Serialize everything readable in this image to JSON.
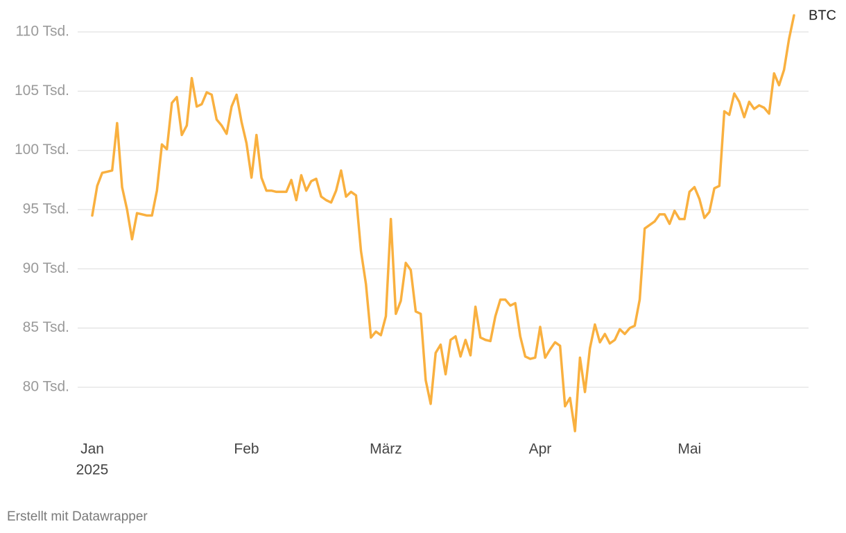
{
  "chart_data": {
    "type": "line",
    "categories": [
      "Jan",
      null,
      null,
      null,
      null,
      null,
      null,
      null,
      null,
      null,
      null,
      null,
      null,
      null,
      null,
      null,
      null,
      null,
      null,
      null,
      null,
      null,
      null,
      null,
      null,
      null,
      null,
      null,
      null,
      null,
      null,
      "Feb",
      null,
      null,
      null,
      null,
      null,
      null,
      null,
      null,
      null,
      null,
      null,
      null,
      null,
      null,
      null,
      null,
      null,
      null,
      null,
      null,
      null,
      null,
      null,
      null,
      null,
      null,
      null,
      "März",
      null,
      null,
      null,
      null,
      null,
      null,
      null,
      null,
      null,
      null,
      null,
      null,
      null,
      null,
      null,
      null,
      null,
      null,
      null,
      null,
      null,
      null,
      null,
      null,
      null,
      null,
      null,
      null,
      null,
      null,
      "Apr",
      null,
      null,
      null,
      null,
      null,
      null,
      null,
      null,
      null,
      null,
      null,
      null,
      null,
      null,
      null,
      null,
      null,
      null,
      null,
      null,
      null,
      null,
      null,
      null,
      null,
      null,
      null,
      null,
      null,
      "Mai",
      null,
      null,
      null,
      null,
      null,
      null,
      null,
      null,
      null,
      null,
      null,
      null,
      null,
      null,
      null,
      null,
      null,
      null,
      null,
      null,
      null
    ],
    "year_label": "2025",
    "series": [
      {
        "name": "BTC",
        "color": "#f9b03f",
        "values": [
          94.5,
          97.0,
          98.1,
          98.2,
          98.3,
          102.3,
          96.9,
          95.0,
          92.5,
          94.7,
          94.6,
          94.5,
          94.5,
          96.6,
          100.5,
          100.1,
          104.0,
          104.5,
          101.3,
          102.1,
          106.1,
          103.7,
          103.9,
          104.9,
          104.7,
          102.6,
          102.1,
          101.4,
          103.7,
          104.7,
          102.4,
          100.6,
          97.7,
          101.3,
          97.7,
          96.6,
          96.6,
          96.5,
          96.5,
          96.5,
          97.5,
          95.8,
          97.9,
          96.6,
          97.4,
          97.6,
          96.1,
          95.8,
          95.6,
          96.6,
          98.3,
          96.1,
          96.5,
          96.2,
          91.5,
          88.7,
          84.2,
          84.7,
          84.4,
          86.0,
          94.2,
          86.2,
          87.3,
          90.5,
          89.9,
          86.4,
          86.2,
          80.6,
          78.6,
          82.9,
          83.6,
          81.1,
          84.0,
          84.3,
          82.6,
          84.0,
          82.7,
          86.8,
          84.2,
          84.0,
          83.9,
          86.0,
          87.4,
          87.4,
          86.9,
          87.1,
          84.3,
          82.6,
          82.4,
          82.5,
          85.1,
          82.5,
          83.2,
          83.8,
          83.5,
          78.4,
          79.1,
          76.3,
          82.5,
          79.6,
          83.3,
          85.3,
          83.8,
          84.5,
          83.7,
          84.0,
          84.9,
          84.5,
          85.0,
          85.2,
          87.4,
          93.4,
          93.7,
          94.0,
          94.6,
          94.6,
          93.8,
          94.9,
          94.2,
          94.2,
          96.5,
          96.9,
          95.9,
          94.3,
          94.8,
          96.8,
          97.0,
          103.3,
          103.0,
          104.8,
          104.1,
          102.8,
          104.1,
          103.5,
          103.8,
          103.6,
          103.1,
          106.5,
          105.5,
          106.8,
          109.4,
          111.4
        ]
      }
    ],
    "ylim": [
      76,
      111.6
    ],
    "yticks": [
      {
        "value": 80,
        "label": "80 Tsd."
      },
      {
        "value": 85,
        "label": "85 Tsd."
      },
      {
        "value": 90,
        "label": "90 Tsd."
      },
      {
        "value": 95,
        "label": "95 Tsd."
      },
      {
        "value": 100,
        "label": "100 Tsd."
      },
      {
        "value": 105,
        "label": "105 Tsd."
      },
      {
        "value": 110,
        "label": "110 Tsd."
      }
    ],
    "grid": true,
    "footer": "Erstellt mit Datawrapper"
  }
}
